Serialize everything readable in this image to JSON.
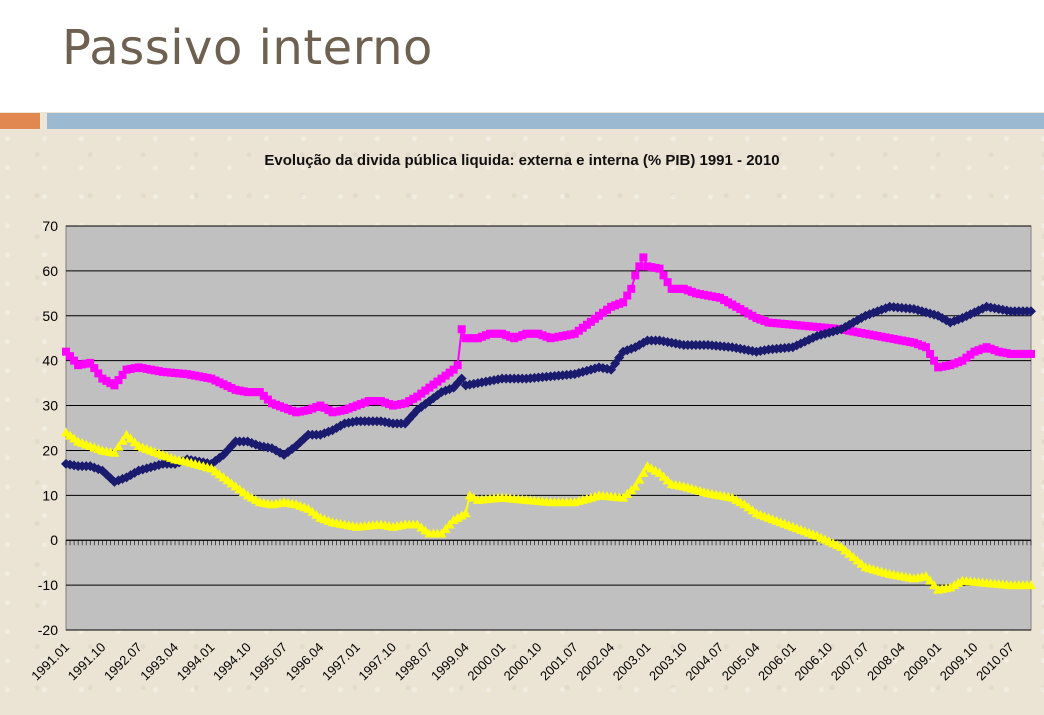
{
  "slide": {
    "title": "Passivo interno"
  },
  "colors": {
    "background": "#ebe3d3",
    "plot_area": "#c0c0c0",
    "accent_orange": "#e0884f",
    "accent_blue": "#9cb9d2"
  },
  "chart_data": {
    "type": "line",
    "title": "Evolução da divida pública liquida: externa e interna (% PIB) 1991 - 2010",
    "xlabel": "",
    "ylabel": "",
    "ylim": [
      -20,
      70
    ],
    "yticks": [
      -20,
      -10,
      0,
      10,
      20,
      30,
      40,
      50,
      60,
      70
    ],
    "grid": true,
    "legend": "none",
    "xticks": [
      "1991.01",
      "1991.10",
      "1992.07",
      "1993.04",
      "1994.01",
      "1994.10",
      "1995.07",
      "1996.04",
      "1997.01",
      "1997.10",
      "1998.07",
      "1999.04",
      "2000.01",
      "2000.10",
      "2001.07",
      "2002.04",
      "2003.01",
      "2003.10",
      "2004.07",
      "2005.04",
      "2006.01",
      "2006.10",
      "2007.07",
      "2008.04",
      "2009.01",
      "2009.10",
      "2010.07"
    ],
    "x_start": "1991.01",
    "x_end": "2010.12",
    "series": [
      {
        "name": "",
        "color": "#ff00ff",
        "marker": "square",
        "points": [
          [
            "1991.01",
            42
          ],
          [
            "1991.04",
            39
          ],
          [
            "1991.07",
            39.5
          ],
          [
            "1991.10",
            36
          ],
          [
            "1992.01",
            34.5
          ],
          [
            "1992.04",
            38
          ],
          [
            "1992.07",
            38.5
          ],
          [
            "1993.01",
            37.5
          ],
          [
            "1993.07",
            37
          ],
          [
            "1994.01",
            36
          ],
          [
            "1994.07",
            33.5
          ],
          [
            "1994.10",
            33
          ],
          [
            "1995.01",
            33
          ],
          [
            "1995.04",
            30.5
          ],
          [
            "1995.07",
            29.5
          ],
          [
            "1995.10",
            28.5
          ],
          [
            "1996.01",
            29
          ],
          [
            "1996.04",
            30
          ],
          [
            "1996.07",
            28.5
          ],
          [
            "1996.10",
            29
          ],
          [
            "1997.01",
            30
          ],
          [
            "1997.04",
            31
          ],
          [
            "1997.07",
            31
          ],
          [
            "1997.10",
            30
          ],
          [
            "1998.01",
            30.5
          ],
          [
            "1998.04",
            32
          ],
          [
            "1998.07",
            34
          ],
          [
            "1998.10",
            36
          ],
          [
            "1999.01",
            38
          ],
          [
            "1999.02",
            39
          ],
          [
            "1999.03",
            47
          ],
          [
            "1999.04",
            45
          ],
          [
            "1999.07",
            45
          ],
          [
            "1999.10",
            46
          ],
          [
            "2000.01",
            46
          ],
          [
            "2000.04",
            45
          ],
          [
            "2000.07",
            46
          ],
          [
            "2000.10",
            46
          ],
          [
            "2001.01",
            45
          ],
          [
            "2001.04",
            45.5
          ],
          [
            "2001.07",
            46
          ],
          [
            "2001.10",
            48
          ],
          [
            "2002.01",
            50
          ],
          [
            "2002.04",
            52
          ],
          [
            "2002.07",
            53
          ],
          [
            "2002.09",
            56
          ],
          [
            "2002.10",
            59
          ],
          [
            "2002.12",
            63
          ],
          [
            "2003.01",
            61
          ],
          [
            "2003.04",
            60.5
          ],
          [
            "2003.07",
            56
          ],
          [
            "2003.10",
            56
          ],
          [
            "2004.01",
            55
          ],
          [
            "2004.07",
            54
          ],
          [
            "2005.01",
            51
          ],
          [
            "2005.04",
            49.5
          ],
          [
            "2005.07",
            48.5
          ],
          [
            "2006.01",
            48
          ],
          [
            "2006.07",
            47.5
          ],
          [
            "2007.01",
            47
          ],
          [
            "2007.07",
            46
          ],
          [
            "2008.01",
            45
          ],
          [
            "2008.07",
            44
          ],
          [
            "2008.10",
            43
          ],
          [
            "2009.01",
            38.5
          ],
          [
            "2009.04",
            39
          ],
          [
            "2009.07",
            40
          ],
          [
            "2009.10",
            42
          ],
          [
            "2010.01",
            43
          ],
          [
            "2010.04",
            42
          ],
          [
            "2010.07",
            41.5
          ],
          [
            "2010.12",
            41.5
          ]
        ]
      },
      {
        "name": "",
        "color": "#1a1a6e",
        "marker": "diamond",
        "points": [
          [
            "1991.01",
            17
          ],
          [
            "1991.04",
            16.5
          ],
          [
            "1991.07",
            16.5
          ],
          [
            "1991.10",
            15.5
          ],
          [
            "1992.01",
            13
          ],
          [
            "1992.04",
            14
          ],
          [
            "1992.07",
            15.5
          ],
          [
            "1993.01",
            17
          ],
          [
            "1993.04",
            17
          ],
          [
            "1993.07",
            18
          ],
          [
            "1994.01",
            17
          ],
          [
            "1994.04",
            19
          ],
          [
            "1994.07",
            22
          ],
          [
            "1994.10",
            22
          ],
          [
            "1995.01",
            21
          ],
          [
            "1995.04",
            20.5
          ],
          [
            "1995.07",
            19
          ],
          [
            "1995.10",
            21
          ],
          [
            "1996.01",
            23.5
          ],
          [
            "1996.04",
            23.5
          ],
          [
            "1996.07",
            24.5
          ],
          [
            "1996.10",
            26
          ],
          [
            "1997.01",
            26.5
          ],
          [
            "1997.04",
            26.5
          ],
          [
            "1997.07",
            26.5
          ],
          [
            "1997.10",
            26
          ],
          [
            "1998.01",
            26
          ],
          [
            "1998.04",
            29
          ],
          [
            "1998.07",
            31
          ],
          [
            "1998.10",
            33
          ],
          [
            "1999.01",
            34
          ],
          [
            "1999.03",
            36
          ],
          [
            "1999.04",
            34.5
          ],
          [
            "1999.07",
            35
          ],
          [
            "2000.01",
            36
          ],
          [
            "2000.07",
            36
          ],
          [
            "2001.01",
            36.5
          ],
          [
            "2001.07",
            37
          ],
          [
            "2002.01",
            38.5
          ],
          [
            "2002.04",
            38
          ],
          [
            "2002.07",
            42
          ],
          [
            "2002.10",
            43
          ],
          [
            "2003.01",
            44.5
          ],
          [
            "2003.04",
            44.5
          ],
          [
            "2003.07",
            44
          ],
          [
            "2003.10",
            43.5
          ],
          [
            "2004.04",
            43.5
          ],
          [
            "2004.10",
            43
          ],
          [
            "2005.01",
            42.5
          ],
          [
            "2005.04",
            42
          ],
          [
            "2005.07",
            42.5
          ],
          [
            "2006.01",
            43
          ],
          [
            "2006.07",
            45.5
          ],
          [
            "2007.01",
            47
          ],
          [
            "2007.07",
            50
          ],
          [
            "2008.01",
            52
          ],
          [
            "2008.07",
            51.5
          ],
          [
            "2009.01",
            50
          ],
          [
            "2009.04",
            48.5
          ],
          [
            "2009.07",
            49.5
          ],
          [
            "2010.01",
            52
          ],
          [
            "2010.04",
            51.5
          ],
          [
            "2010.07",
            51
          ],
          [
            "2010.12",
            51
          ]
        ]
      },
      {
        "name": "",
        "color": "#ffff00",
        "marker": "triangle",
        "points": [
          [
            "1991.01",
            24
          ],
          [
            "1991.04",
            22
          ],
          [
            "1991.07",
            21
          ],
          [
            "1991.10",
            20
          ],
          [
            "1992.01",
            19.5
          ],
          [
            "1992.04",
            23.5
          ],
          [
            "1992.07",
            21
          ],
          [
            "1993.01",
            19
          ],
          [
            "1993.04",
            18
          ],
          [
            "1993.07",
            17.5
          ],
          [
            "1994.01",
            16
          ],
          [
            "1994.04",
            14
          ],
          [
            "1994.07",
            12
          ],
          [
            "1994.10",
            10
          ],
          [
            "1995.01",
            8.5
          ],
          [
            "1995.04",
            8
          ],
          [
            "1995.07",
            8.5
          ],
          [
            "1995.10",
            8
          ],
          [
            "1996.01",
            7
          ],
          [
            "1996.04",
            5
          ],
          [
            "1996.07",
            4
          ],
          [
            "1996.10",
            3.5
          ],
          [
            "1997.01",
            3
          ],
          [
            "1997.07",
            3.5
          ],
          [
            "1997.10",
            3
          ],
          [
            "1998.01",
            3.5
          ],
          [
            "1998.04",
            3.5
          ],
          [
            "1998.07",
            1.5
          ],
          [
            "1998.10",
            1.5
          ],
          [
            "1999.01",
            4.5
          ],
          [
            "1999.04",
            6
          ],
          [
            "1999.05",
            10
          ],
          [
            "1999.07",
            9
          ],
          [
            "2000.01",
            9.5
          ],
          [
            "2000.07",
            9
          ],
          [
            "2001.01",
            8.5
          ],
          [
            "2001.07",
            8.5
          ],
          [
            "2002.01",
            10
          ],
          [
            "2002.07",
            9.5
          ],
          [
            "2002.10",
            12
          ],
          [
            "2003.01",
            16.5
          ],
          [
            "2003.04",
            15
          ],
          [
            "2003.07",
            12.5
          ],
          [
            "2003.10",
            12
          ],
          [
            "2004.04",
            10.5
          ],
          [
            "2004.10",
            9.5
          ],
          [
            "2005.01",
            8
          ],
          [
            "2005.04",
            6
          ],
          [
            "2005.07",
            5
          ],
          [
            "2006.01",
            3
          ],
          [
            "2006.07",
            1
          ],
          [
            "2007.01",
            -1.5
          ],
          [
            "2007.07",
            -6
          ],
          [
            "2008.01",
            -7.5
          ],
          [
            "2008.07",
            -8.5
          ],
          [
            "2008.10",
            -8
          ],
          [
            "2009.01",
            -11
          ],
          [
            "2009.04",
            -10.5
          ],
          [
            "2009.07",
            -9
          ],
          [
            "2010.01",
            -9.5
          ],
          [
            "2010.07",
            -10
          ],
          [
            "2010.12",
            -10
          ]
        ]
      }
    ]
  }
}
